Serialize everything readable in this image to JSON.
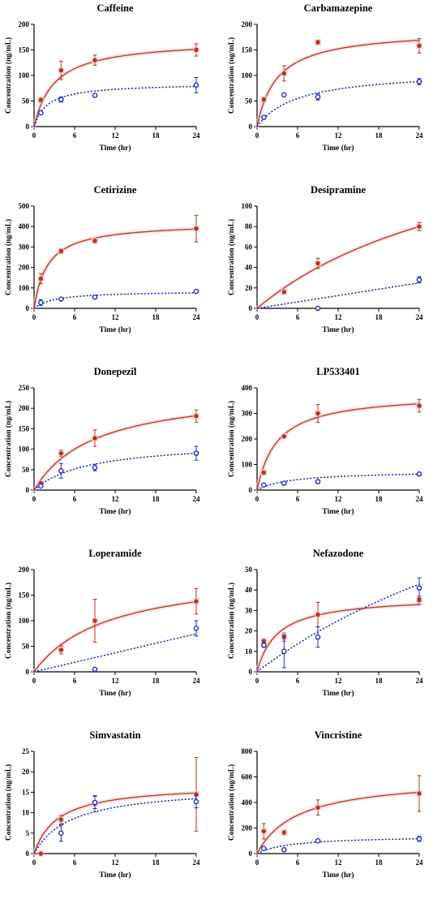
{
  "colors": {
    "red_series": "#b5361c",
    "blue_series": "#1f2fb5",
    "band": "#f6c9d2",
    "axis": "#000000"
  },
  "chart_data": [
    {
      "type": "line",
      "title": "Caffeine",
      "xlabel": "Time (hr)",
      "ylabel": "Concentration (ng/mL)",
      "xlim": [
        0,
        24
      ],
      "ylim": [
        0,
        200
      ],
      "xticks": [
        "0",
        "6",
        "12",
        "18",
        "24"
      ],
      "yticks": [
        "0",
        "50",
        "100",
        "150",
        "200"
      ],
      "series": [
        {
          "style": "solid-filled-circle",
          "x": [
            1,
            4,
            9,
            24
          ],
          "y": [
            52,
            110,
            130,
            150
          ],
          "err": [
            4,
            18,
            10,
            12
          ],
          "fit": {
            "vmax": 170,
            "k": 3.0
          }
        },
        {
          "style": "dotted-open-circle",
          "x": [
            1,
            4,
            9,
            24
          ],
          "y": [
            27,
            53,
            61,
            81
          ],
          "err": [
            3,
            5,
            3,
            15
          ],
          "fit": {
            "vmax": 85,
            "k": 2.0
          }
        }
      ]
    },
    {
      "type": "line",
      "title": "Carbamazepine",
      "xlabel": "Time (hr)",
      "ylabel": "Concentration (ng/mL)",
      "xlim": [
        0,
        24
      ],
      "ylim": [
        0,
        200
      ],
      "xticks": [
        "0",
        "6",
        "12",
        "18",
        "24"
      ],
      "yticks": [
        "0",
        "50",
        "100",
        "150",
        "200"
      ],
      "series": [
        {
          "style": "solid-filled-circle",
          "x": [
            1,
            4,
            9,
            24
          ],
          "y": [
            53,
            104,
            165,
            158
          ],
          "err": [
            5,
            15,
            4,
            14
          ],
          "fit": {
            "vmax": 190,
            "k": 3.0
          }
        },
        {
          "style": "dotted-open-circle",
          "x": [
            1,
            4,
            9,
            24
          ],
          "y": [
            18,
            62,
            58,
            88
          ],
          "err": [
            2,
            3,
            6,
            6
          ],
          "fit": {
            "vmax": 110,
            "k": 6.0
          }
        }
      ]
    },
    {
      "type": "line",
      "title": "Cetirizine",
      "xlabel": "Time (hr)",
      "ylabel": "Concentration (ng/mL)",
      "xlim": [
        0,
        24
      ],
      "ylim": [
        0,
        500
      ],
      "xticks": [
        "0",
        "6",
        "12",
        "18",
        "24"
      ],
      "yticks": [
        "0",
        "100",
        "200",
        "300",
        "400",
        "500"
      ],
      "series": [
        {
          "style": "solid-filled-circle",
          "x": [
            1,
            4,
            9,
            24
          ],
          "y": [
            145,
            280,
            330,
            390
          ],
          "err": [
            25,
            10,
            10,
            65
          ],
          "fit": {
            "vmax": 420,
            "k": 2.0
          }
        },
        {
          "style": "dotted-open-circle",
          "x": [
            1,
            4,
            9,
            24
          ],
          "y": [
            28,
            45,
            55,
            83
          ],
          "err": [
            15,
            3,
            3,
            5
          ],
          "fit": {
            "vmax": 85,
            "k": 3.0
          }
        }
      ]
    },
    {
      "type": "line",
      "title": "Desipramine",
      "xlabel": "Time (hr)",
      "ylabel": "Concentration (ng/mL)",
      "xlim": [
        0,
        24
      ],
      "ylim": [
        0,
        100
      ],
      "xticks": [
        "0",
        "6",
        "12",
        "18",
        "24"
      ],
      "yticks": [
        "0",
        "20",
        "40",
        "60",
        "80",
        "100"
      ],
      "series": [
        {
          "style": "solid-filled-circle",
          "x": [
            4,
            9,
            24
          ],
          "y": [
            16,
            44,
            80
          ],
          "err": [
            2,
            5,
            4
          ],
          "fit": {
            "vmax": 200,
            "k": 36
          }
        },
        {
          "style": "dotted-open-circle",
          "x": [
            9,
            24
          ],
          "y": [
            0,
            28
          ],
          "err": [
            0.5,
            3
          ],
          "fit": {
            "vmax": 1.04,
            "k": 0
          }
        }
      ]
    },
    {
      "type": "line",
      "title": "Donepezil",
      "xlabel": "Time (hr)",
      "ylabel": "Concentration (ng/mL)",
      "xlim": [
        0,
        24
      ],
      "ylim": [
        0,
        250
      ],
      "xticks": [
        "0",
        "6",
        "12",
        "18",
        "24"
      ],
      "yticks": [
        "0",
        "50",
        "100",
        "150",
        "200",
        "250"
      ],
      "series": [
        {
          "style": "solid-filled-circle",
          "x": [
            1,
            4,
            9,
            24
          ],
          "y": [
            17,
            90,
            127,
            181
          ],
          "err": [
            3,
            8,
            20,
            15
          ],
          "fit": {
            "vmax": 250,
            "k": 9.0
          }
        },
        {
          "style": "dotted-open-circle",
          "x": [
            1,
            4,
            9,
            24
          ],
          "y": [
            10,
            47,
            55,
            90
          ],
          "err": [
            3,
            18,
            8,
            17
          ],
          "fit": {
            "vmax": 120,
            "k": 8.0
          }
        }
      ]
    },
    {
      "type": "line",
      "title": "LP533401",
      "xlabel": "Time (hr)",
      "ylabel": "Concentration (ng/mL)",
      "xlim": [
        0,
        24
      ],
      "ylim": [
        0,
        400
      ],
      "xticks": [
        "0",
        "6",
        "12",
        "18",
        "24"
      ],
      "yticks": [
        "0",
        "100",
        "200",
        "300",
        "400"
      ],
      "series": [
        {
          "style": "solid-filled-circle",
          "x": [
            1,
            4,
            9,
            24
          ],
          "y": [
            68,
            210,
            300,
            330
          ],
          "err": [
            5,
            5,
            35,
            25
          ],
          "fit": {
            "vmax": 380,
            "k": 3.0
          }
        },
        {
          "style": "dotted-open-circle",
          "x": [
            1,
            4,
            9,
            24
          ],
          "y": [
            20,
            27,
            33,
            63
          ],
          "err": [
            2,
            2,
            3,
            3
          ],
          "fit": {
            "vmax": 75,
            "k": 5.0
          }
        }
      ]
    },
    {
      "type": "line",
      "title": "Loperamide",
      "xlabel": "Time (hr)",
      "ylabel": "Concentration (ng/mL)",
      "xlim": [
        0,
        24
      ],
      "ylim": [
        0,
        200
      ],
      "xticks": [
        "0",
        "6",
        "12",
        "18",
        "24"
      ],
      "yticks": [
        "0",
        "50",
        "100",
        "150",
        "200"
      ],
      "series": [
        {
          "style": "solid-filled-circle",
          "x": [
            4,
            9,
            24
          ],
          "y": [
            43,
            100,
            138
          ],
          "err": [
            8,
            42,
            25
          ],
          "fit": {
            "vmax": 200,
            "k": 11
          }
        },
        {
          "style": "dotted-open-circle",
          "x": [
            9,
            24
          ],
          "y": [
            5,
            85
          ],
          "err": [
            2,
            15
          ],
          "fit": {
            "vmax": 3.1,
            "k": 0
          }
        }
      ]
    },
    {
      "type": "line",
      "title": "Nefazodone",
      "xlabel": "Time (hr)",
      "ylabel": "Concentration (ng/mL)",
      "xlim": [
        0,
        24
      ],
      "ylim": [
        0,
        50
      ],
      "xticks": [
        "0",
        "6",
        "12",
        "18",
        "24"
      ],
      "yticks": [
        "0",
        "10",
        "20",
        "30",
        "40",
        "50"
      ],
      "series": [
        {
          "style": "solid-filled-circle",
          "x": [
            1,
            4,
            9,
            24
          ],
          "y": [
            15,
            17,
            28,
            35
          ],
          "err": [
            1,
            2,
            6,
            2
          ],
          "fit": {
            "vmax": 37,
            "k": 3.0
          }
        },
        {
          "style": "dotted-open-circle",
          "x": [
            1,
            4,
            9,
            24
          ],
          "y": [
            13,
            10,
            17,
            41
          ],
          "err": [
            1,
            8,
            5,
            5
          ],
          "fit": {
            "vmax": 150,
            "k": 60
          }
        }
      ]
    },
    {
      "type": "line",
      "title": "Simvastatin",
      "xlabel": "Time (hr)",
      "ylabel": "Concentration (ng/mL)",
      "xlim": [
        0,
        24
      ],
      "ylim": [
        0,
        25
      ],
      "xticks": [
        "0",
        "6",
        "12",
        "18",
        "24"
      ],
      "yticks": [
        "0",
        "5",
        "10",
        "15",
        "20",
        "25"
      ],
      "series": [
        {
          "style": "solid-filled-circle",
          "x": [
            1,
            4,
            9,
            24
          ],
          "y": [
            0,
            8.3,
            12.2,
            14.5
          ],
          "err": [
            0.2,
            1,
            2,
            9
          ],
          "fit": {
            "vmax": 17,
            "k": 3.5
          }
        },
        {
          "style": "dotted-open-circle",
          "x": [
            4,
            9,
            24
          ],
          "y": [
            5,
            12.5,
            12.7
          ],
          "err": [
            2,
            1.5,
            1.5
          ],
          "fit": {
            "vmax": 16.5,
            "k": 5.5
          }
        }
      ]
    },
    {
      "type": "line",
      "title": "Vincristine",
      "xlabel": "Time (hr)",
      "ylabel": "Concentration (ng/mL)",
      "xlim": [
        0,
        24
      ],
      "ylim": [
        0,
        800
      ],
      "xticks": [
        "0",
        "6",
        "12",
        "18",
        "24"
      ],
      "yticks": [
        "0",
        "200",
        "400",
        "600",
        "800"
      ],
      "series": [
        {
          "style": "solid-filled-circle",
          "x": [
            1,
            4,
            9,
            24
          ],
          "y": [
            175,
            165,
            360,
            470
          ],
          "err": [
            60,
            20,
            60,
            140
          ],
          "fit": {
            "vmax": 600,
            "k": 6.0
          }
        },
        {
          "style": "dotted-open-circle",
          "x": [
            1,
            4,
            9,
            24
          ],
          "y": [
            40,
            30,
            100,
            115
          ],
          "err": [
            10,
            5,
            5,
            20
          ],
          "fit": {
            "vmax": 140,
            "k": 5.0
          }
        }
      ]
    }
  ]
}
